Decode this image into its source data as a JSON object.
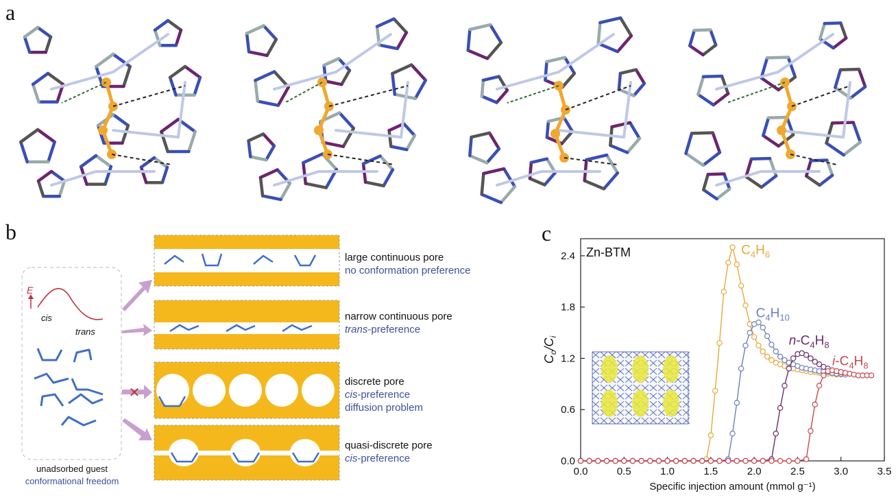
{
  "panel_labels": {
    "a": "a",
    "b": "b",
    "c": "c"
  },
  "panel_b": {
    "energy_axis": "E",
    "energy_cis": "cis",
    "energy_trans": "trans",
    "guest_title": "unadsorbed guest",
    "guest_subtitle": "conformational freedom",
    "pores": [
      {
        "title": "large continuous pore",
        "note": "no conformation preference"
      },
      {
        "title": "narrow continuous pore",
        "note_italic": "trans",
        "note_rest": "-preference"
      },
      {
        "title": "discrete pore",
        "note_italic": "cis",
        "note_rest": "-preference",
        "note2": "diffusion problem"
      },
      {
        "title": "quasi-discrete pore",
        "note_italic": "cis",
        "note_rest": "-preference"
      }
    ],
    "blocked_mark": "✕"
  },
  "colors": {
    "c4h6": "#e8a838",
    "c4h10": "#6a7fc0",
    "nc4h8": "#6b2d6b",
    "ic4h8": "#c9474e",
    "pore": "#f5b81c",
    "molecule": "#3f6fc6"
  },
  "chart_data": {
    "type": "line",
    "inset_label": "Zn-BTM",
    "xlabel": "Specific injection amount (mmol g⁻¹)",
    "ylabel": "Co/Ci",
    "xlim": [
      0,
      3.5
    ],
    "ylim": [
      0,
      2.6
    ],
    "xticks": [
      "0.0",
      "0.5",
      "1.0",
      "1.5",
      "2.0",
      "2.5",
      "3.0",
      "3.5"
    ],
    "yticks": [
      "0.0",
      "0.6",
      "1.2",
      "1.8",
      "2.4"
    ],
    "series": [
      {
        "name": "C4H6",
        "label_main": "C",
        "label_sub1": "4",
        "label_mid": "H",
        "label_sub2": "6",
        "color": "#e8a838",
        "x": [
          0,
          0.1,
          0.2,
          0.3,
          0.4,
          0.5,
          0.6,
          0.7,
          0.8,
          0.9,
          1.0,
          1.1,
          1.2,
          1.3,
          1.4,
          1.45,
          1.5,
          1.55,
          1.6,
          1.65,
          1.7,
          1.75,
          1.8,
          1.85,
          1.9,
          1.95,
          2.0,
          2.05,
          2.1,
          2.15,
          2.2,
          2.25,
          2.3,
          2.35,
          2.4,
          2.45,
          2.5,
          2.55,
          2.6,
          2.65,
          2.7,
          2.75,
          2.8,
          2.85,
          2.9,
          2.95,
          3.0
        ],
        "y": [
          0,
          0,
          0,
          0,
          0,
          0,
          0,
          0,
          0,
          0,
          0,
          0,
          0,
          0,
          0,
          0.02,
          0.3,
          0.82,
          1.38,
          1.98,
          2.32,
          2.5,
          2.3,
          2.05,
          1.82,
          1.6,
          1.45,
          1.35,
          1.28,
          1.22,
          1.18,
          1.15,
          1.13,
          1.11,
          1.09,
          1.08,
          1.07,
          1.06,
          1.05,
          1.04,
          1.04,
          1.03,
          1.03,
          1.02,
          1.02,
          1.01,
          1.01
        ]
      },
      {
        "name": "C4H10",
        "label_main": "C",
        "label_sub1": "4",
        "label_mid": "H",
        "label_sub2": "10",
        "color": "#6a7fc0",
        "x": [
          0,
          0.1,
          0.2,
          0.3,
          0.4,
          0.5,
          0.6,
          0.7,
          0.8,
          0.9,
          1.0,
          1.1,
          1.2,
          1.3,
          1.4,
          1.5,
          1.6,
          1.7,
          1.75,
          1.8,
          1.85,
          1.9,
          1.95,
          2.0,
          2.05,
          2.1,
          2.15,
          2.2,
          2.25,
          2.3,
          2.35,
          2.4,
          2.45,
          2.5,
          2.55,
          2.6,
          2.65,
          2.7,
          2.75,
          2.8,
          2.85,
          2.9,
          2.95,
          3.0,
          3.05
        ],
        "y": [
          0,
          0,
          0,
          0,
          0,
          0,
          0,
          0,
          0,
          0,
          0,
          0,
          0,
          0,
          0,
          0,
          0,
          0.02,
          0.32,
          0.68,
          1.08,
          1.35,
          1.5,
          1.6,
          1.62,
          1.56,
          1.46,
          1.36,
          1.28,
          1.22,
          1.18,
          1.15,
          1.13,
          1.11,
          1.09,
          1.08,
          1.07,
          1.06,
          1.05,
          1.05,
          1.04,
          1.03,
          1.02,
          1.02,
          1.01
        ]
      },
      {
        "name": "n-C4H8",
        "label_prefix": "n",
        "label_main": "-C",
        "label_sub1": "4",
        "label_mid": "H",
        "label_sub2": "8",
        "color": "#6b2d6b",
        "x": [
          0,
          0.1,
          0.2,
          0.3,
          0.4,
          0.5,
          0.6,
          0.7,
          0.8,
          0.9,
          1.0,
          1.1,
          1.2,
          1.3,
          1.4,
          1.5,
          1.6,
          1.7,
          1.8,
          1.9,
          2.0,
          2.1,
          2.2,
          2.25,
          2.3,
          2.35,
          2.4,
          2.45,
          2.5,
          2.55,
          2.6,
          2.65,
          2.7,
          2.75,
          2.8,
          2.85,
          2.9,
          2.95,
          3.0,
          3.05,
          3.1
        ],
        "y": [
          0,
          0,
          0,
          0,
          0,
          0,
          0,
          0,
          0,
          0,
          0,
          0,
          0,
          0,
          0,
          0,
          0,
          0,
          0,
          0,
          0,
          0,
          0.02,
          0.32,
          0.62,
          0.88,
          1.08,
          1.2,
          1.25,
          1.26,
          1.24,
          1.2,
          1.16,
          1.13,
          1.1,
          1.08,
          1.06,
          1.05,
          1.04,
          1.03,
          1.02
        ]
      },
      {
        "name": "i-C4H8",
        "label_prefix": "i",
        "label_main": "-C",
        "label_sub1": "4",
        "label_mid": "H",
        "label_sub2": "8",
        "color": "#c9474e",
        "x": [
          0,
          0.1,
          0.2,
          0.3,
          0.4,
          0.5,
          0.6,
          0.7,
          0.8,
          0.9,
          1.0,
          1.1,
          1.2,
          1.3,
          1.4,
          1.5,
          1.6,
          1.7,
          1.8,
          1.9,
          2.0,
          2.1,
          2.2,
          2.3,
          2.4,
          2.5,
          2.6,
          2.65,
          2.7,
          2.75,
          2.8,
          2.85,
          2.9,
          2.95,
          3.0,
          3.05,
          3.1,
          3.15,
          3.2,
          3.25,
          3.3,
          3.35
        ],
        "y": [
          0,
          0,
          0,
          0,
          0,
          0,
          0,
          0,
          0,
          0,
          0,
          0,
          0,
          0,
          0,
          0,
          0,
          0,
          0,
          0,
          0,
          0,
          0,
          0,
          0,
          0,
          0.02,
          0.35,
          0.66,
          0.88,
          1.0,
          1.05,
          1.06,
          1.05,
          1.04,
          1.03,
          1.02,
          1.01,
          1.0,
          1.0,
          1.0,
          1.0
        ]
      }
    ]
  }
}
